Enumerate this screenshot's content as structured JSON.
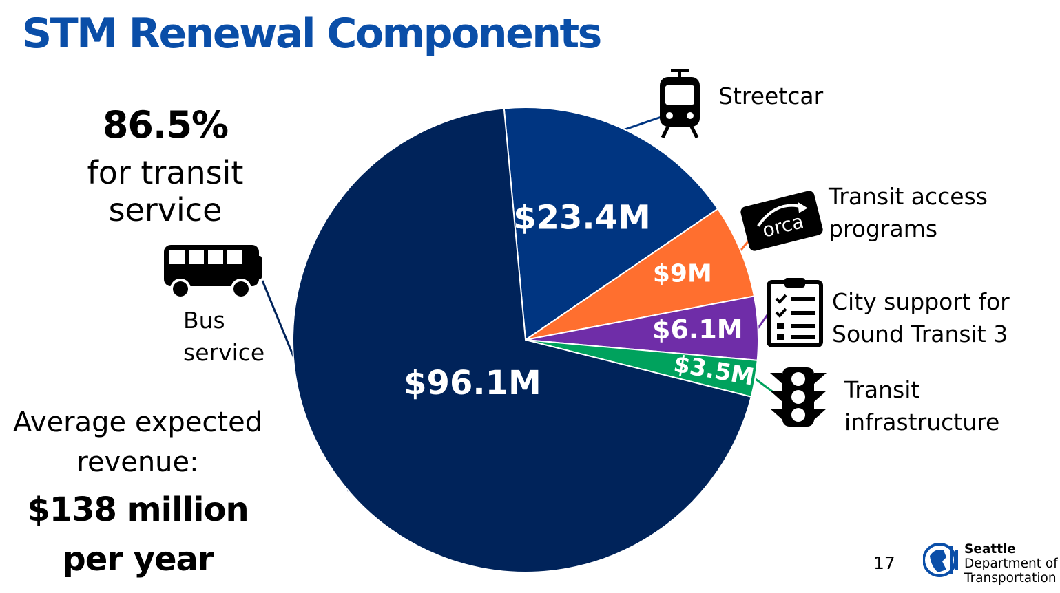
{
  "title": "STM Renewal Components",
  "summary": {
    "transit_percent": "86.5%",
    "transit_percent_label": "for transit service",
    "revenue_label": "Average expected revenue:",
    "revenue_value": "$138 million per year"
  },
  "page_number": "17",
  "logo": {
    "name": "Seattle",
    "department": "Department of Transportation"
  },
  "chart_data": {
    "type": "pie",
    "slices": [
      {
        "category": "Bus\nservice",
        "value": 96.1,
        "label": "$96.1M",
        "color": "#00235a",
        "label_color": "#ffffff",
        "icon": "bus-icon"
      },
      {
        "category": "Streetcar",
        "value": 23.4,
        "label": "$23.4M",
        "color": "#003581",
        "label_color": "#ffffff",
        "icon": "streetcar-icon"
      },
      {
        "category": "Transit access\nprograms",
        "value": 9,
        "label": "$9M",
        "color": "#ff6f2f",
        "label_color": "#ffffff",
        "icon": "orca-card-icon"
      },
      {
        "category": "City support for\nSound Transit 3",
        "value": 6.1,
        "label": "$6.1M",
        "color": "#6f2da8",
        "label_color": "#ffffff",
        "icon": "clipboard-checklist-icon"
      },
      {
        "category": "Transit\ninfrastructure",
        "value": 3.5,
        "label": "$3.5M",
        "color": "#00a25d",
        "label_color": "#ffffff",
        "icon": "traffic-light-icon"
      }
    ]
  }
}
